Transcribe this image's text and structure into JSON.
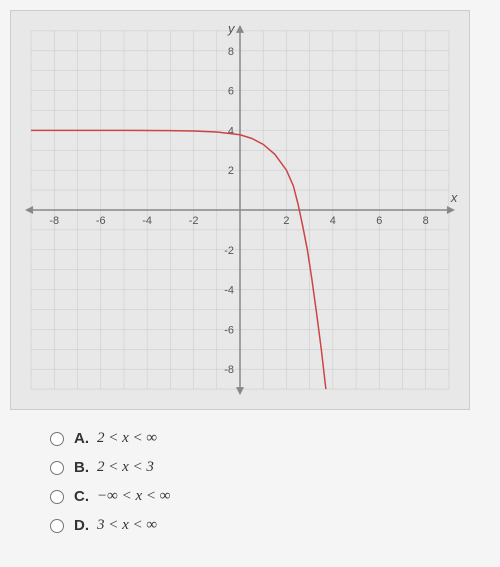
{
  "graph": {
    "type": "line",
    "xlim": [
      -9,
      9
    ],
    "ylim": [
      -9,
      9
    ],
    "xtick_values": [
      -8,
      -6,
      -4,
      -2,
      2,
      4,
      6,
      8
    ],
    "ytick_values": [
      -8,
      -6,
      -4,
      -2,
      2,
      4,
      6,
      8
    ],
    "xlabel": "x",
    "ylabel": "y",
    "background_color": "#e8e8e8",
    "grid_color": "#c8c8c8",
    "axis_color": "#888888",
    "tick_label_color": "#555555",
    "tick_fontsize": 11,
    "curve_color": "#cc4444",
    "curve_width": 1.5,
    "curve_points": [
      [
        -9,
        4
      ],
      [
        -7,
        4
      ],
      [
        -5,
        4
      ],
      [
        -3,
        3.99
      ],
      [
        -2,
        3.97
      ],
      [
        -1,
        3.92
      ],
      [
        0,
        3.78
      ],
      [
        0.5,
        3.6
      ],
      [
        1,
        3.3
      ],
      [
        1.5,
        2.8
      ],
      [
        2,
        2.0
      ],
      [
        2.3,
        1.2
      ],
      [
        2.5,
        0.3
      ],
      [
        2.7,
        -0.8
      ],
      [
        2.9,
        -2.0
      ],
      [
        3.1,
        -3.5
      ],
      [
        3.3,
        -5.2
      ],
      [
        3.5,
        -7.0
      ],
      [
        3.7,
        -9
      ]
    ]
  },
  "choices": [
    {
      "letter": "A.",
      "text": "2 < x < ∞"
    },
    {
      "letter": "B.",
      "text": "2 < x < 3"
    },
    {
      "letter": "C.",
      "text": "−∞ < x < ∞"
    },
    {
      "letter": "D.",
      "text": "3 < x < ∞"
    }
  ]
}
